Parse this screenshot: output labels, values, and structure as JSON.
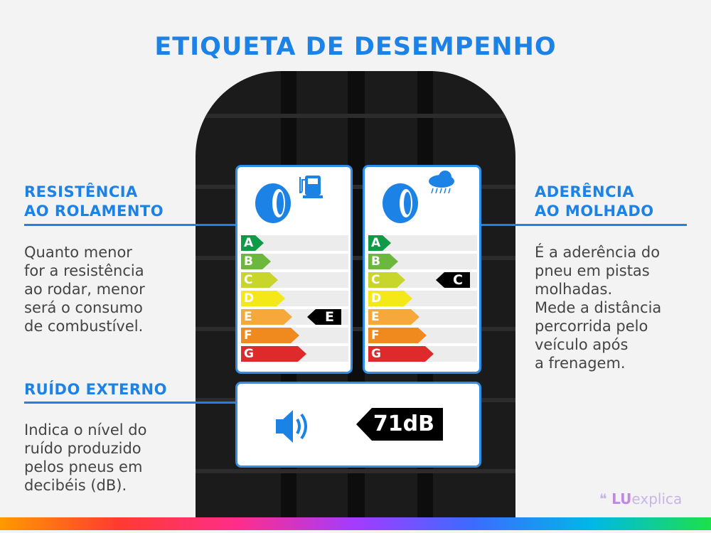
{
  "title": "ETIQUETA DE DESEMPENHO",
  "left_top": {
    "heading": [
      "RESISTÊNCIA",
      "AO ROLAMENTO"
    ],
    "body": [
      "Quanto menor",
      "for a resistência",
      "ao rodar, menor",
      "será o consumo",
      "de combustível."
    ]
  },
  "left_bottom": {
    "heading": [
      "RUÍDO EXTERNO"
    ],
    "body": [
      "Indica o nível do",
      "ruído produzido",
      "pelos pneus em",
      "decibéis (dB)."
    ]
  },
  "right": {
    "heading": [
      "ADERÊNCIA",
      "AO MOLHADO"
    ],
    "body": [
      "É a aderência do",
      "pneu em pistas",
      "molhadas.",
      "Mede a distância",
      "percorrida pelo",
      "veículo após",
      "a frenagem."
    ]
  },
  "grades": [
    "A",
    "B",
    "C",
    "D",
    "E",
    "F",
    "G"
  ],
  "grade_colors": [
    "#0f9a48",
    "#6cb83d",
    "#c8d52a",
    "#f4e819",
    "#f6a93a",
    "#f08a1e",
    "#de2a2a"
  ],
  "fuel_label": {
    "icon": "fuel-pump-icon",
    "rating": "E"
  },
  "wet_label": {
    "icon": "rain-cloud-icon",
    "rating": "C"
  },
  "noise_label": {
    "icon": "speaker-icon",
    "value": "71dB"
  },
  "logo": {
    "a": "LU",
    "b": "explica"
  },
  "accent": "#1c82e6"
}
